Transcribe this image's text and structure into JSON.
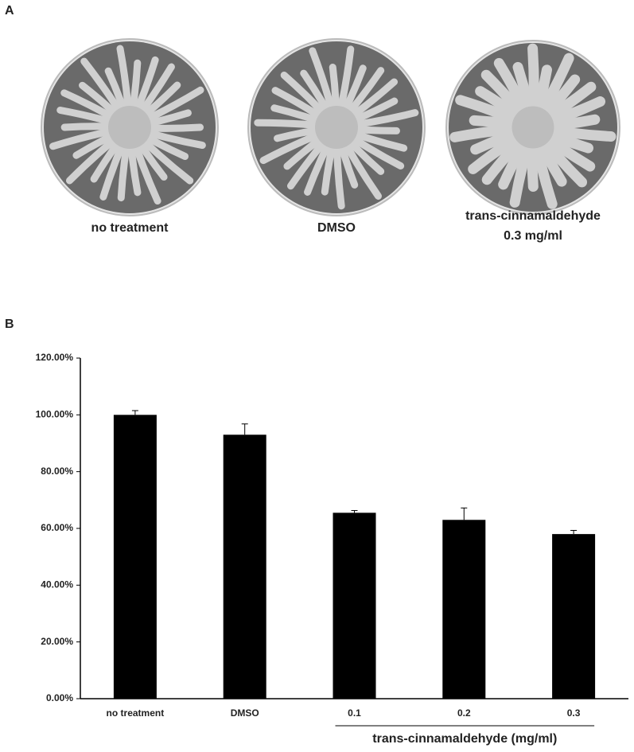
{
  "panels": [
    "A",
    "B"
  ],
  "images": [
    {
      "label": [
        "no treatment"
      ]
    },
    {
      "label": [
        "DMSO"
      ]
    },
    {
      "label": [
        "trans-cinnamaldehyde",
        "0.3 mg/ml"
      ]
    }
  ],
  "chart_data": {
    "type": "bar",
    "categories": [
      "no treatment",
      "DMSO",
      "0.1",
      "0.2",
      "0.3"
    ],
    "values": [
      100,
      93,
      65.5,
      63,
      58
    ],
    "errors": [
      1.5,
      3.8,
      0.8,
      4.2,
      1.3
    ],
    "color": "#000000",
    "group_label": "trans-cinnamaldehyde (mg/ml)",
    "ylim": [
      0,
      120
    ],
    "yticks": [
      {
        "value": 0,
        "label": "0.00%"
      },
      {
        "value": 20,
        "label": "20.00%"
      },
      {
        "value": 40,
        "label": "40.00%"
      },
      {
        "value": 60,
        "label": "60.00%"
      },
      {
        "value": 80,
        "label": "80.00%"
      },
      {
        "value": 100,
        "label": "100.00%"
      },
      {
        "value": 120,
        "label": "120.00%"
      }
    ],
    "grid": false
  }
}
